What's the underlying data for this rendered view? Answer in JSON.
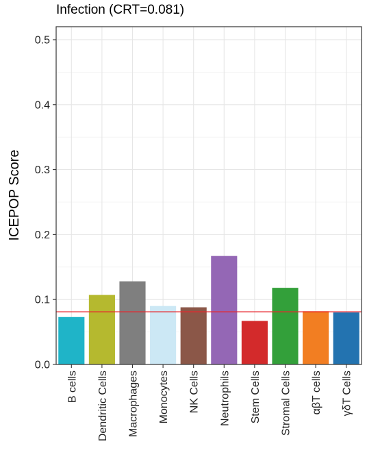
{
  "chart_data": {
    "type": "bar",
    "title": "Infection (CRT=0.081)",
    "xlabel": "",
    "ylabel": "ICEPOP Score",
    "ylim": [
      0,
      0.52
    ],
    "yticks": [
      "0.0",
      "0.1",
      "0.2",
      "0.3",
      "0.4",
      "0.5"
    ],
    "grid": true,
    "legend": "none",
    "reference_line": {
      "value": 0.081,
      "color": "#e8262c"
    },
    "categories": [
      "B cells",
      "Dendritic Cells",
      "Macrophages",
      "Monocytes",
      "NK Cells",
      "Neutrophils",
      "Stem Cells",
      "Stromal Cells",
      "αβT cells",
      "γδT Cells"
    ],
    "values": [
      0.073,
      0.107,
      0.128,
      0.09,
      0.088,
      0.167,
      0.067,
      0.118,
      0.082,
      0.08
    ],
    "colors": [
      "#1fb4c8",
      "#b5b92f",
      "#7f7f7f",
      "#cce8f5",
      "#8b5748",
      "#9467b5",
      "#d32a2b",
      "#33a03a",
      "#f27e22",
      "#2373b0"
    ]
  }
}
